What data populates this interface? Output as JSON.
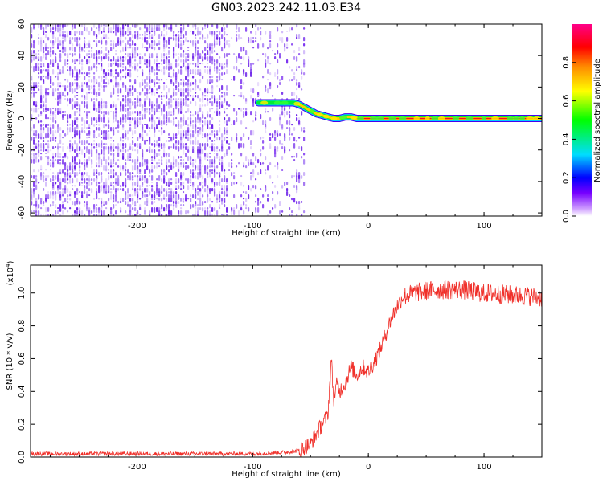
{
  "figure_title": "GN03.2023.242.11.03.E34",
  "colors": {
    "spectrogram_dots": "#7a2ff0",
    "ridge": "#e8232a",
    "snr_line": "#f0302a",
    "colorbar_stops": [
      "#ffffff",
      "#7700ff",
      "#0000ff",
      "#00ddff",
      "#00ff00",
      "#ffff00",
      "#ff8800",
      "#ff0000",
      "#ff0088"
    ]
  },
  "chart_data": [
    {
      "type": "heatmap",
      "xlabel": "Height of straight line (km)",
      "ylabel": "Frequency (Hz)",
      "xlim": [
        -292,
        150
      ],
      "ylim": [
        -62,
        60
      ],
      "xticks": [
        "-200",
        "-100",
        "0",
        "100"
      ],
      "yticks": [
        "60",
        "40",
        "20",
        "0",
        "-20",
        "-40",
        "-60"
      ],
      "ridge": {
        "x": [
          -95,
          -85,
          -75,
          -65,
          -60,
          -55,
          -50,
          -45,
          -40,
          -35,
          -30,
          -25,
          -20,
          -15,
          -10,
          0,
          50,
          100,
          150
        ],
        "y": [
          10,
          10,
          10,
          10,
          9,
          7,
          5,
          3,
          2,
          1,
          0,
          0,
          1,
          1,
          0,
          0,
          0,
          0,
          0
        ]
      },
      "noise_region_x": [
        -292,
        -55
      ],
      "colorbar": {
        "label": "Normalized spectral amplitude",
        "range": [
          0,
          1
        ],
        "ticks": [
          "0.0",
          "0.2",
          "0.4",
          "0.6",
          "0.8"
        ]
      }
    },
    {
      "type": "line",
      "xlabel": "Height of straight line (km)",
      "ylabel": "SNR (10 * v/v)",
      "exponent_label": "(x10",
      "exponent_power": "4",
      "exponent_close": ")",
      "xlim": [
        -292,
        150
      ],
      "ylim": [
        0,
        1.17
      ],
      "xticks": [
        "-200",
        "-100",
        "0",
        "100"
      ],
      "yticks": [
        "0.0",
        "0.2",
        "0.4",
        "0.6",
        "0.8",
        "1.0"
      ],
      "series": [
        {
          "x": [
            -292,
            -250,
            -200,
            -150,
            -100,
            -70,
            -60,
            -55,
            -50,
            -45,
            -40,
            -35,
            -32,
            -30,
            -27,
            -25,
            -20,
            -15,
            -10,
            -5,
            0,
            5,
            10,
            15,
            20,
            25,
            30,
            40,
            60,
            80,
            100,
            120,
            140,
            150
          ],
          "y": [
            0.02,
            0.02,
            0.02,
            0.02,
            0.02,
            0.03,
            0.04,
            0.06,
            0.08,
            0.14,
            0.2,
            0.26,
            0.6,
            0.35,
            0.45,
            0.4,
            0.45,
            0.55,
            0.5,
            0.55,
            0.52,
            0.58,
            0.65,
            0.75,
            0.85,
            0.92,
            0.98,
            1.0,
            1.02,
            1.02,
            1.0,
            0.99,
            0.98,
            0.97
          ]
        }
      ]
    }
  ]
}
